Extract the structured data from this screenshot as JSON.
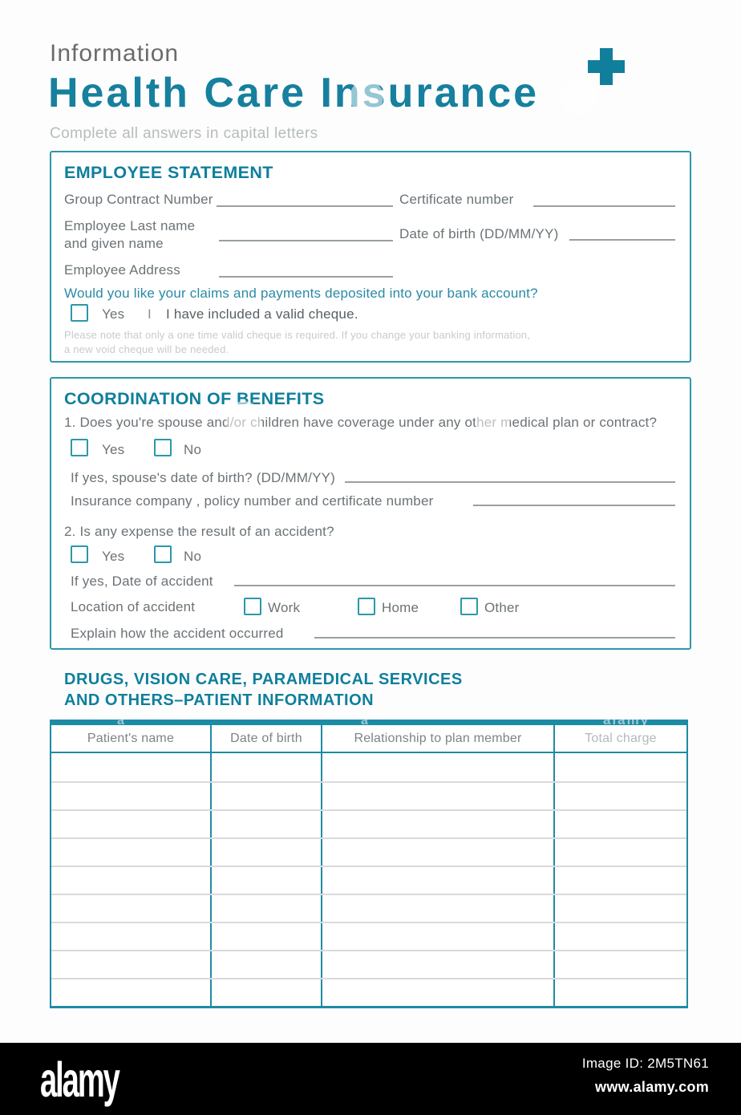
{
  "colors": {
    "accent_teal": "#17809d",
    "table_teal": "#1e8ba4",
    "checkbox_teal": "#2b98ab",
    "question_teal": "#2a8aa5",
    "label_gray": "#6b7276",
    "muted_gray": "#b6bcbe",
    "fine_print_gray": "#c7cbcc",
    "line_gray": "#9aa0a3",
    "row_divider_gray": "#d9dadb",
    "footer_black": "#000000"
  },
  "header": {
    "eyebrow": "Information",
    "title": "Health Care Insurance",
    "plus_icon": "+",
    "subtitle": "Complete all answers in capital letters"
  },
  "employee_statement": {
    "heading": "EMPLOYEE STATEMENT",
    "group_contract_label": "Group Contract Number",
    "certificate_label": "Certificate number",
    "name_label_line1": "Employee Last name",
    "name_label_line2": "and given name",
    "dob_label": "Date of birth (DD/MM/YY)",
    "address_label": "Employee Address",
    "bank_question": "Would you like your claims and payments deposited into your bank account?",
    "yes_label": "Yes",
    "divider": "I",
    "cheque_label": "I have included a valid cheque.",
    "note_line1": "Please note that only a one time valid cheque is required. If you change your banking information,",
    "note_line2": "a new void cheque will be needed."
  },
  "coordination_of_benefits": {
    "heading": "COORDINATION OF BENEFITS",
    "question1": "1. Does you're spouse and/or children have coverage under any other medical plan or contract?",
    "yes_label": "Yes",
    "no_label": "No",
    "spouse_dob_label": "If yes, spouse's date of birth? (DD/MM/YY)",
    "insurance_label": "Insurance company , policy number and certificate number",
    "question2": "2. Is any expense the result of an accident?",
    "accident_date_label": "If yes, Date of accident",
    "location_label": "Location of accident",
    "location_options": [
      "Work",
      "Home",
      "Other"
    ],
    "explain_label": "Explain how the accident occurred"
  },
  "patient_section": {
    "heading_line1": "DRUGS, VISION CARE, PARAMEDICAL SERVICES",
    "heading_line2": "AND OTHERS–PATIENT INFORMATION",
    "table": {
      "columns": [
        "Patient's name",
        "Date of birth",
        "Relationship to plan member",
        "Total charge"
      ],
      "empty_row_count": 9
    }
  },
  "watermark": {
    "brand": "alamy",
    "letter": "a"
  },
  "footer": {
    "logo": "alamy",
    "image_id": "Image ID: 2M5TN61",
    "website": "www.alamy.com"
  }
}
